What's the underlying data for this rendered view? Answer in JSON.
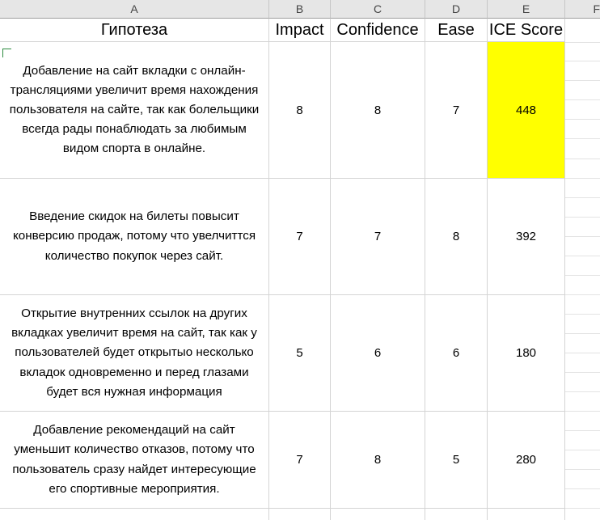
{
  "columns": [
    "A",
    "B",
    "C",
    "D",
    "E",
    "F"
  ],
  "header": {
    "hypothesis": "Гипотеза",
    "impact": "Impact",
    "confidence": "Confidence",
    "ease": "Ease",
    "ice_score": "ICE Score"
  },
  "rows": [
    {
      "hypothesis": "Добавление на сайт вкладки с онлайн-трансляциями увеличит время нахождения пользователя на сайте, так как болельщики всегда рады понаблюдать за любимым видом спорта в онлайне.",
      "impact": "8",
      "confidence": "8",
      "ease": "7",
      "ice": "448"
    },
    {
      "hypothesis": "Введение скидок на билеты повысит конверсию продаж, потому что увелчиттся количество покупок через сайт.",
      "impact": "7",
      "confidence": "7",
      "ease": "8",
      "ice": "392"
    },
    {
      "hypothesis": "Открытие внутренних ссылок на других вкладках увеличит время на сайт, так как у пользователей будет открытыо несколько вкладок одновременно и перед глазами будет вся нужная информация",
      "impact": "5",
      "confidence": "6",
      "ease": "6",
      "ice": "180"
    },
    {
      "hypothesis": "Добавление рекомендаций на сайт уменьшит количество отказов, потому что пользователь сразу найдет интересующие его спортивные мероприятия.",
      "impact": "7",
      "confidence": "8",
      "ease": "5",
      "ice": "280"
    }
  ],
  "colors": {
    "highlight": "#ffff00",
    "header_bg": "#e6e6e6",
    "grid": "#d4d4d4"
  }
}
